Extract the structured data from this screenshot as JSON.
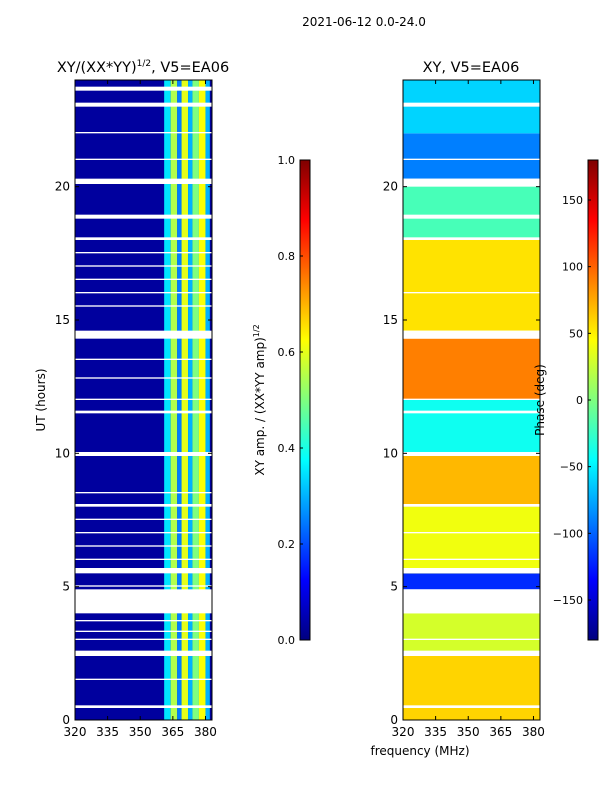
{
  "suptitle": "2021-06-12 0.0-24.0",
  "xlabel_shared": "frequency (MHz)",
  "colors": {
    "jet": [
      "#00007f",
      "#0000ff",
      "#007fff",
      "#00ffff",
      "#7fff7f",
      "#ffff00",
      "#ff7f00",
      "#ff0000",
      "#7f0000"
    ]
  },
  "chart_data": [
    {
      "type": "heatmap",
      "title": "XY/(XX*YY)",
      "title_sup": "1/2",
      "title_suffix": ", V5=EA06",
      "xlabel": "",
      "ylabel": "UT (hours)",
      "xlim": [
        320,
        383
      ],
      "ylim": [
        0,
        24
      ],
      "xticks": [
        320,
        335,
        350,
        365,
        380
      ],
      "yticks": [
        0,
        5,
        10,
        15,
        20
      ],
      "colorbar": {
        "label": "XY amp. / (XX*YY amp)",
        "label_sup": "1/2",
        "range": [
          0.0,
          1.0
        ],
        "ticks": [
          "0.0",
          "0.2",
          "0.4",
          "0.6",
          "0.8",
          "1.0"
        ],
        "tick_values": [
          0.0,
          0.2,
          0.4,
          0.6,
          0.8,
          1.0
        ]
      },
      "background_value": 0.03,
      "band_columns_mhz": [
        {
          "from": 361,
          "to": 364,
          "value": 0.35
        },
        {
          "from": 364,
          "to": 367,
          "value": 0.55
        },
        {
          "from": 367,
          "to": 369,
          "value": 0.25
        },
        {
          "from": 369,
          "to": 372,
          "value": 0.6
        },
        {
          "from": 372,
          "to": 374,
          "value": 0.3
        },
        {
          "from": 374,
          "to": 377,
          "value": 0.5
        },
        {
          "from": 377,
          "to": 380,
          "value": 0.62
        },
        {
          "from": 380,
          "to": 382,
          "value": 0.3
        }
      ],
      "gaps_hours": [
        [
          0.45,
          0.55
        ],
        [
          1.5,
          1.55
        ],
        [
          2.4,
          2.6
        ],
        [
          3.0,
          3.05
        ],
        [
          3.3,
          3.35
        ],
        [
          3.7,
          3.75
        ],
        [
          4.0,
          4.9
        ],
        [
          5.0,
          5.05
        ],
        [
          5.5,
          5.7
        ],
        [
          6.0,
          6.05
        ],
        [
          6.5,
          6.55
        ],
        [
          7.0,
          7.05
        ],
        [
          7.5,
          7.55
        ],
        [
          8.0,
          8.1
        ],
        [
          8.5,
          8.55
        ],
        [
          9.9,
          10.05
        ],
        [
          11.5,
          11.6
        ],
        [
          12.0,
          12.05
        ],
        [
          12.8,
          12.85
        ],
        [
          13.5,
          13.55
        ],
        [
          14.3,
          14.6
        ],
        [
          15.5,
          15.55
        ],
        [
          16.0,
          16.05
        ],
        [
          16.5,
          16.55
        ],
        [
          17.0,
          17.05
        ],
        [
          17.5,
          17.55
        ],
        [
          18.0,
          18.1
        ],
        [
          18.8,
          18.95
        ],
        [
          20.1,
          20.3
        ],
        [
          21.0,
          21.05
        ],
        [
          22.0,
          22.05
        ],
        [
          23.0,
          23.15
        ],
        [
          23.6,
          23.75
        ]
      ]
    },
    {
      "type": "heatmap",
      "title": "XY, V5=EA06",
      "xlabel": "frequency (MHz)",
      "ylabel": "",
      "xlim": [
        320,
        383
      ],
      "ylim": [
        0,
        24
      ],
      "xticks": [
        320,
        335,
        350,
        365,
        380
      ],
      "yticks": [
        0,
        5,
        10,
        15,
        20
      ],
      "colorbar": {
        "label": "Phase (deg)",
        "range": [
          -180,
          180
        ],
        "ticks": [
          "−150",
          "−100",
          "−50",
          "0",
          "50",
          "100",
          "150"
        ],
        "tick_values": [
          -150,
          -100,
          -50,
          0,
          50,
          100,
          150
        ]
      },
      "segments": [
        {
          "from": 0,
          "to": 2.5,
          "value": 60
        },
        {
          "from": 2.5,
          "to": 4.0,
          "value": 30
        },
        {
          "from": 4.9,
          "to": 5.5,
          "value": -120
        },
        {
          "from": 5.5,
          "to": 8.0,
          "value": 40
        },
        {
          "from": 8.0,
          "to": 10.0,
          "value": 70
        },
        {
          "from": 10.0,
          "to": 12.0,
          "value": -40
        },
        {
          "from": 12.0,
          "to": 14.3,
          "value": 90
        },
        {
          "from": 14.6,
          "to": 18.0,
          "value": 55
        },
        {
          "from": 18.0,
          "to": 20.0,
          "value": -20
        },
        {
          "from": 20.3,
          "to": 22.0,
          "value": -90
        },
        {
          "from": 22.0,
          "to": 24.0,
          "value": -60
        }
      ],
      "gaps_hours": [
        [
          0.45,
          0.55
        ],
        [
          2.4,
          2.6
        ],
        [
          3.0,
          3.05
        ],
        [
          4.0,
          4.9
        ],
        [
          5.5,
          5.7
        ],
        [
          6.0,
          6.05
        ],
        [
          7.0,
          7.05
        ],
        [
          8.0,
          8.1
        ],
        [
          9.9,
          10.05
        ],
        [
          11.5,
          11.6
        ],
        [
          12.0,
          12.05
        ],
        [
          14.3,
          14.6
        ],
        [
          16.0,
          16.05
        ],
        [
          18.0,
          18.1
        ],
        [
          18.8,
          18.95
        ],
        [
          20.1,
          20.3
        ],
        [
          21.0,
          21.05
        ],
        [
          23.0,
          23.15
        ]
      ]
    }
  ]
}
